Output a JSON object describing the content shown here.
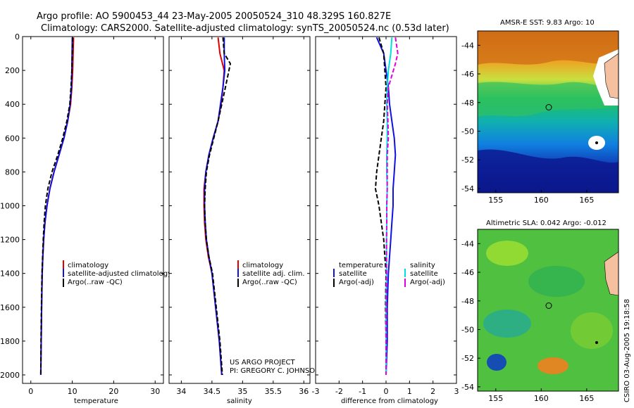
{
  "figure": {
    "title_line1": "Argo profile: AO 5900453_44 23-May-2005 20050524_310 48.329S 160.827E",
    "title_line2": "Climatology: CARS2000. Satellite-adjusted climatology: synTS_20050524.nc (0.53d later)",
    "project_line1": "US ARGO PROJECT",
    "project_line2": "PI: GREGORY C. JOHNSON",
    "credit": "CSIRO 03-Aug-2005 19:18:58"
  },
  "colors": {
    "climatology": "#e00000",
    "satellite": "#1010e0",
    "argo": "#000000",
    "salinity_sat": "#00e0e0",
    "salinity_argo": "#e000e0"
  },
  "chart_data": [
    {
      "type": "line",
      "id": "temperature",
      "xlabel": "temperature",
      "ylabel": "",
      "xlim": [
        -2,
        32
      ],
      "ylim": [
        2050,
        0
      ],
      "xticks": [
        0,
        10,
        20,
        30
      ],
      "yticks": [
        0,
        200,
        400,
        600,
        800,
        1000,
        1200,
        1400,
        1600,
        1800,
        2000
      ],
      "legend": [
        "climatology",
        "satellite-adjusted climatology",
        "Argo(..raw -QC)"
      ],
      "series": [
        {
          "name": "climatology",
          "style": "climatology",
          "x": [
            10.3,
            10.2,
            10.1,
            9.9,
            9.6,
            8.9,
            8.0,
            6.8,
            5.6,
            4.6,
            3.9,
            3.4,
            3.1,
            2.9,
            2.75,
            2.6,
            2.5,
            2.4
          ],
          "y": [
            5,
            100,
            200,
            300,
            400,
            500,
            600,
            700,
            800,
            900,
            1000,
            1100,
            1200,
            1300,
            1400,
            1600,
            1800,
            2000
          ]
        },
        {
          "name": "satellite",
          "style": "satellite",
          "x": [
            10.0,
            9.95,
            9.9,
            9.8,
            9.5,
            8.9,
            8.0,
            6.8,
            5.6,
            4.6,
            3.9,
            3.4,
            3.1,
            2.9,
            2.75,
            2.6,
            2.5,
            2.4
          ],
          "y": [
            5,
            100,
            200,
            300,
            400,
            500,
            600,
            700,
            800,
            900,
            1000,
            1100,
            1200,
            1300,
            1400,
            1600,
            1800,
            2000
          ]
        },
        {
          "name": "Argo",
          "style": "argo",
          "x": [
            10.1,
            10.0,
            9.9,
            9.7,
            9.4,
            8.7,
            7.7,
            6.5,
            5.1,
            4.1,
            3.5,
            3.2,
            3.0,
            2.85,
            2.7,
            2.55,
            2.45,
            2.4
          ],
          "y": [
            5,
            100,
            200,
            300,
            400,
            500,
            600,
            700,
            800,
            900,
            1000,
            1100,
            1200,
            1300,
            1400,
            1600,
            1800,
            2000
          ]
        }
      ]
    },
    {
      "type": "line",
      "id": "salinity",
      "xlabel": "salinity",
      "ylabel": "",
      "xlim": [
        33.8,
        36.1
      ],
      "ylim": [
        2050,
        0
      ],
      "xticks": [
        34,
        34.5,
        35,
        35.5,
        36
      ],
      "yticks": [
        0,
        200,
        400,
        600,
        800,
        1000,
        1200,
        1400,
        1600,
        1800,
        2000
      ],
      "legend": [
        "climatology",
        "satellite adj. clim.",
        "Argo(..raw -QC)"
      ],
      "series": [
        {
          "name": "climatology",
          "style": "climatology",
          "x": [
            34.6,
            34.63,
            34.7,
            34.68,
            34.65,
            34.6,
            34.52,
            34.45,
            34.4,
            34.37,
            34.37,
            34.38,
            34.4,
            34.44,
            34.5,
            34.56,
            34.62,
            34.66
          ],
          "y": [
            5,
            100,
            200,
            300,
            400,
            500,
            600,
            700,
            800,
            900,
            1000,
            1100,
            1200,
            1300,
            1400,
            1600,
            1800,
            2000
          ]
        },
        {
          "name": "satellite",
          "style": "satellite",
          "x": [
            34.7,
            34.7,
            34.71,
            34.68,
            34.64,
            34.6,
            34.52,
            34.45,
            34.4,
            34.38,
            34.38,
            34.39,
            34.41,
            34.45,
            34.5,
            34.56,
            34.62,
            34.66
          ],
          "y": [
            5,
            100,
            200,
            300,
            400,
            500,
            600,
            700,
            800,
            900,
            1000,
            1100,
            1200,
            1300,
            1400,
            1600,
            1800,
            2000
          ]
        },
        {
          "name": "Argo",
          "style": "argo",
          "x": [
            34.68,
            34.7,
            34.8,
            34.72,
            34.66,
            34.6,
            34.53,
            34.46,
            34.41,
            34.39,
            34.38,
            34.39,
            34.41,
            34.45,
            34.51,
            34.57,
            34.63,
            34.67
          ],
          "y": [
            5,
            100,
            160,
            300,
            400,
            500,
            600,
            700,
            800,
            900,
            1000,
            1100,
            1200,
            1300,
            1400,
            1600,
            1800,
            2000
          ]
        }
      ]
    },
    {
      "type": "line",
      "id": "difference",
      "xlabel": "difference from climatology",
      "ylabel": "",
      "xlim": [
        -3,
        3
      ],
      "ylim": [
        2050,
        0
      ],
      "xticks": [
        -3,
        -2,
        -1,
        0,
        1,
        2,
        3
      ],
      "yticks": [
        0,
        200,
        400,
        600,
        800,
        1000,
        1200,
        1400,
        1600,
        1800,
        2000
      ],
      "legend_left": [
        "temperature",
        "satellite",
        "Argo(-adj)"
      ],
      "legend_right": [
        "salinity",
        "satellite",
        "Argo(-adj)"
      ],
      "series": [
        {
          "name": "temperature satellite",
          "style": "satellite",
          "x": [
            -0.4,
            -0.1,
            0.0,
            0.1,
            0.15,
            0.25,
            0.35,
            0.4,
            0.35,
            0.3,
            0.3,
            0.25,
            0.2,
            0.15,
            0.1,
            0.05,
            0.05,
            0.0
          ],
          "y": [
            5,
            100,
            200,
            300,
            400,
            500,
            600,
            700,
            800,
            900,
            1000,
            1100,
            1200,
            1300,
            1400,
            1600,
            1800,
            2000
          ]
        },
        {
          "name": "temperature Argo",
          "style": "argo",
          "x": [
            -0.3,
            -0.1,
            -0.05,
            0.0,
            -0.05,
            -0.1,
            -0.2,
            -0.3,
            -0.4,
            -0.45,
            -0.3,
            -0.2,
            -0.1,
            -0.05,
            0.0,
            -0.02,
            0.0,
            0.0
          ],
          "y": [
            5,
            100,
            200,
            300,
            400,
            500,
            600,
            700,
            800,
            900,
            1000,
            1100,
            1200,
            1300,
            1400,
            1600,
            1800,
            2000
          ]
        },
        {
          "name": "salinity satellite",
          "style": "salinity_sat",
          "x": [
            0.25,
            0.2,
            0.1,
            0.05,
            0.03,
            0.05,
            0.05,
            0.03,
            0.03,
            0.05,
            0.03,
            0.03,
            0.02,
            0.02,
            0.02,
            0.0,
            0.0,
            0.0
          ],
          "y": [
            5,
            100,
            200,
            300,
            400,
            500,
            600,
            700,
            800,
            900,
            1000,
            1100,
            1200,
            1300,
            1400,
            1600,
            1800,
            2000
          ]
        },
        {
          "name": "salinity Argo",
          "style": "salinity_argo",
          "x": [
            0.4,
            0.5,
            0.4,
            0.1,
            0.05,
            0.08,
            0.1,
            0.05,
            0.05,
            0.05,
            0.03,
            0.03,
            0.02,
            0.02,
            0.02,
            0.01,
            0.0,
            0.0
          ],
          "y": [
            5,
            100,
            160,
            300,
            400,
            500,
            600,
            700,
            800,
            900,
            1000,
            1100,
            1200,
            1300,
            1400,
            1600,
            1800,
            2000
          ]
        }
      ]
    },
    {
      "type": "heatmap",
      "id": "sst_map",
      "title": "AMSR-E SST: 9.83 Argo: 10",
      "xlim": [
        153,
        168.5
      ],
      "ylim": [
        -54.3,
        -43
      ],
      "xticks": [
        155,
        160,
        165
      ],
      "yticks": [
        -44,
        -46,
        -48,
        -50,
        -52,
        -54
      ],
      "marker": {
        "lon": 160.827,
        "lat": -48.329
      }
    },
    {
      "type": "heatmap",
      "id": "sla_map",
      "title": "Altimetric SLA: 0.042 Argo: -0.012",
      "xlim": [
        153,
        168.5
      ],
      "ylim": [
        -54.3,
        -43
      ],
      "xticks": [
        155,
        160,
        165
      ],
      "yticks": [
        -44,
        -46,
        -48,
        -50,
        -52,
        -54
      ],
      "marker": {
        "lon": 160.827,
        "lat": -48.329
      }
    }
  ]
}
